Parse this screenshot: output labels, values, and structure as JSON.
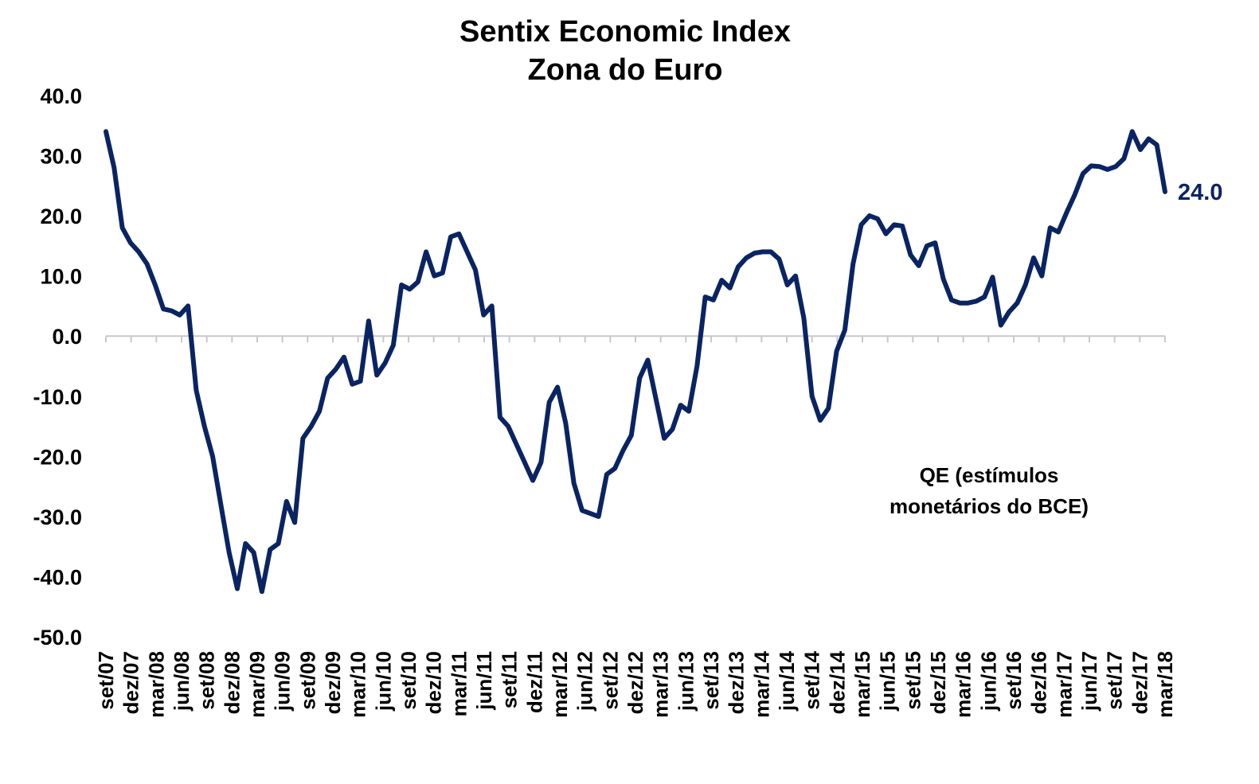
{
  "chart_data": {
    "type": "line",
    "title": "Sentix Economic Index",
    "subtitle": "Zona do Euro",
    "ylim": [
      -50,
      40
    ],
    "y_ticks": [
      "40.0",
      "30.0",
      "20.0",
      "10.0",
      "0.0",
      "-10.0",
      "-20.0",
      "-30.0",
      "-40.0",
      "-50.0"
    ],
    "x_tick_labels": [
      "set/07",
      "dez/07",
      "mar/08",
      "jun/08",
      "set/08",
      "dez/08",
      "mar/09",
      "jun/09",
      "set/09",
      "dez/09",
      "mar/10",
      "jun/10",
      "set/10",
      "dez/10",
      "mar/11",
      "jun/11",
      "set/11",
      "dez/11",
      "mar/12",
      "jun/12",
      "set/12",
      "dez/12",
      "mar/13",
      "jun/13",
      "set/13",
      "dez/13",
      "mar/14",
      "jun/14",
      "set/14",
      "dez/14",
      "mar/15",
      "jun/15",
      "set/15",
      "dez/15",
      "mar/16",
      "jun/16",
      "set/16",
      "dez/16",
      "mar/17",
      "jun/17",
      "set/17",
      "dez/17",
      "mar/18"
    ],
    "series": [
      {
        "color": "#0a2463",
        "values": [
          34.0,
          28.0,
          18.0,
          15.5,
          14.0,
          12.0,
          8.5,
          4.5,
          4.2,
          3.5,
          5.0,
          -9.0,
          -15.0,
          -20.0,
          -28.0,
          -36.0,
          -42.0,
          -34.5,
          -36.0,
          -42.5,
          -35.5,
          -34.5,
          -27.5,
          -31.0,
          -17.0,
          -15.0,
          -12.5,
          -7.0,
          -5.5,
          -3.5,
          -8.0,
          -7.5,
          2.5,
          -6.5,
          -4.5,
          -1.5,
          8.5,
          7.8,
          9.0,
          14.0,
          10.0,
          10.5,
          16.5,
          17.0,
          14.0,
          11.0,
          3.5,
          5.0,
          -13.5,
          -15.0,
          -18.0,
          -21.0,
          -24.0,
          -21.0,
          -11.0,
          -8.5,
          -14.5,
          -24.5,
          -29.0,
          -29.5,
          -30.0,
          -23.0,
          -22.0,
          -19.0,
          -16.5,
          -7.0,
          -4.0,
          -10.5,
          -17.0,
          -15.5,
          -11.5,
          -12.5,
          -5.0,
          6.5,
          6.0,
          9.3,
          8.0,
          11.5,
          13.0,
          13.8,
          14.0,
          14.0,
          12.8,
          8.5,
          10.0,
          3.0,
          -10.0,
          -14.0,
          -12.0,
          -2.5,
          1.0,
          12.0,
          18.5,
          20.0,
          19.5,
          17.0,
          18.5,
          18.3,
          13.5,
          11.7,
          15.0,
          15.5,
          9.5,
          6.0,
          5.5,
          5.5,
          5.8,
          6.5,
          9.8,
          1.8,
          4.0,
          5.5,
          8.5,
          13.0,
          10.0,
          18.0,
          17.3,
          20.5,
          23.5,
          27.0,
          28.3,
          28.2,
          27.7,
          28.2,
          29.5,
          34.0,
          31.0,
          32.8,
          31.8,
          24.0
        ]
      }
    ],
    "last_value_label": "24.0",
    "annotation_lines": [
      "QE (estímulos",
      "monetários do BCE)"
    ],
    "grid": false
  }
}
